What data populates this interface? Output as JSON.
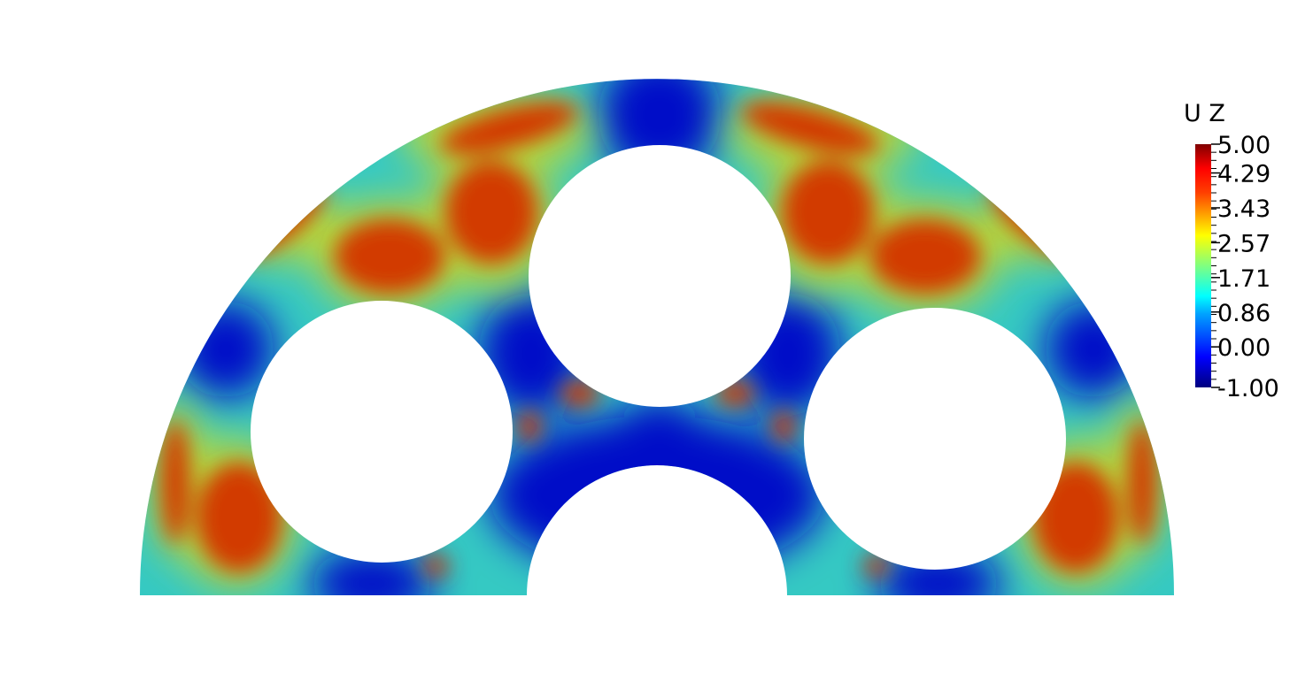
{
  "field": {
    "name": "U Z",
    "range": [
      -1.0,
      5.0
    ]
  },
  "colorbar": {
    "title": "U Z",
    "tick_labels": [
      "5.00",
      "4.29",
      "3.43",
      "2.57",
      "1.71",
      "0.86",
      "0.00",
      "-1.00"
    ],
    "tick_values": [
      5.0,
      4.29,
      3.43,
      2.57,
      1.71,
      0.86,
      0.0,
      -1.0
    ],
    "colormap": [
      "#00007f",
      "#0000ff",
      "#00a0ff",
      "#00ffff",
      "#80ff80",
      "#ffff00",
      "#ff8000",
      "#ff0000",
      "#800000"
    ],
    "colormap_name": "jet"
  },
  "colors": {
    "background": "#ffffff",
    "low": "#0000b0",
    "mid": "#30d6c0",
    "high": "#d22d00"
  }
}
